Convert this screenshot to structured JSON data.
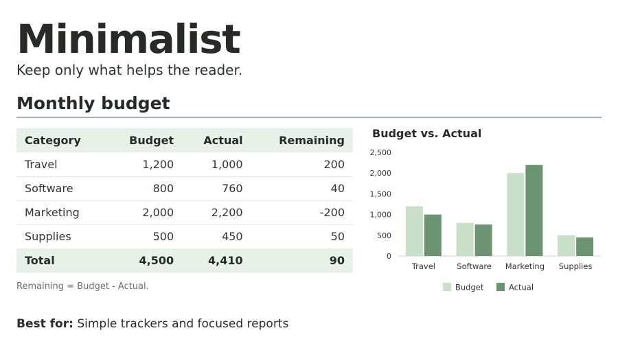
{
  "header": {
    "title": "Minimalist",
    "subtitle": "Keep only what helps the reader."
  },
  "section": {
    "title": "Monthly budget"
  },
  "table": {
    "columns": [
      "Category",
      "Budget",
      "Actual",
      "Remaining"
    ],
    "rows": [
      [
        "Travel",
        "1,200",
        "1,000",
        "200"
      ],
      [
        "Software",
        "800",
        "760",
        "40"
      ],
      [
        "Marketing",
        "2,000",
        "2,200",
        "-200"
      ],
      [
        "Supplies",
        "500",
        "450",
        "50"
      ]
    ],
    "total": [
      "Total",
      "4,500",
      "4,410",
      "90"
    ]
  },
  "note": "Remaining = Budget - Actual.",
  "best_for": {
    "label": "Best for:",
    "text": "Simple trackers and focused reports"
  },
  "colors": {
    "budget": "#c9dfc8",
    "actual": "#6c9472",
    "accent_rule": "#9cb89f"
  },
  "chart_data": {
    "type": "bar",
    "title": "Budget vs. Actual",
    "categories": [
      "Travel",
      "Software",
      "Marketing",
      "Supplies"
    ],
    "series": [
      {
        "name": "Budget",
        "values": [
          1200,
          800,
          2000,
          500
        ]
      },
      {
        "name": "Actual",
        "values": [
          1000,
          760,
          2200,
          450
        ]
      }
    ],
    "yticks": [
      "0",
      "500",
      "1,000",
      "1,500",
      "2,000",
      "2,500"
    ],
    "ylim": [
      0,
      2500
    ],
    "grid": false,
    "legend": "bottom"
  }
}
